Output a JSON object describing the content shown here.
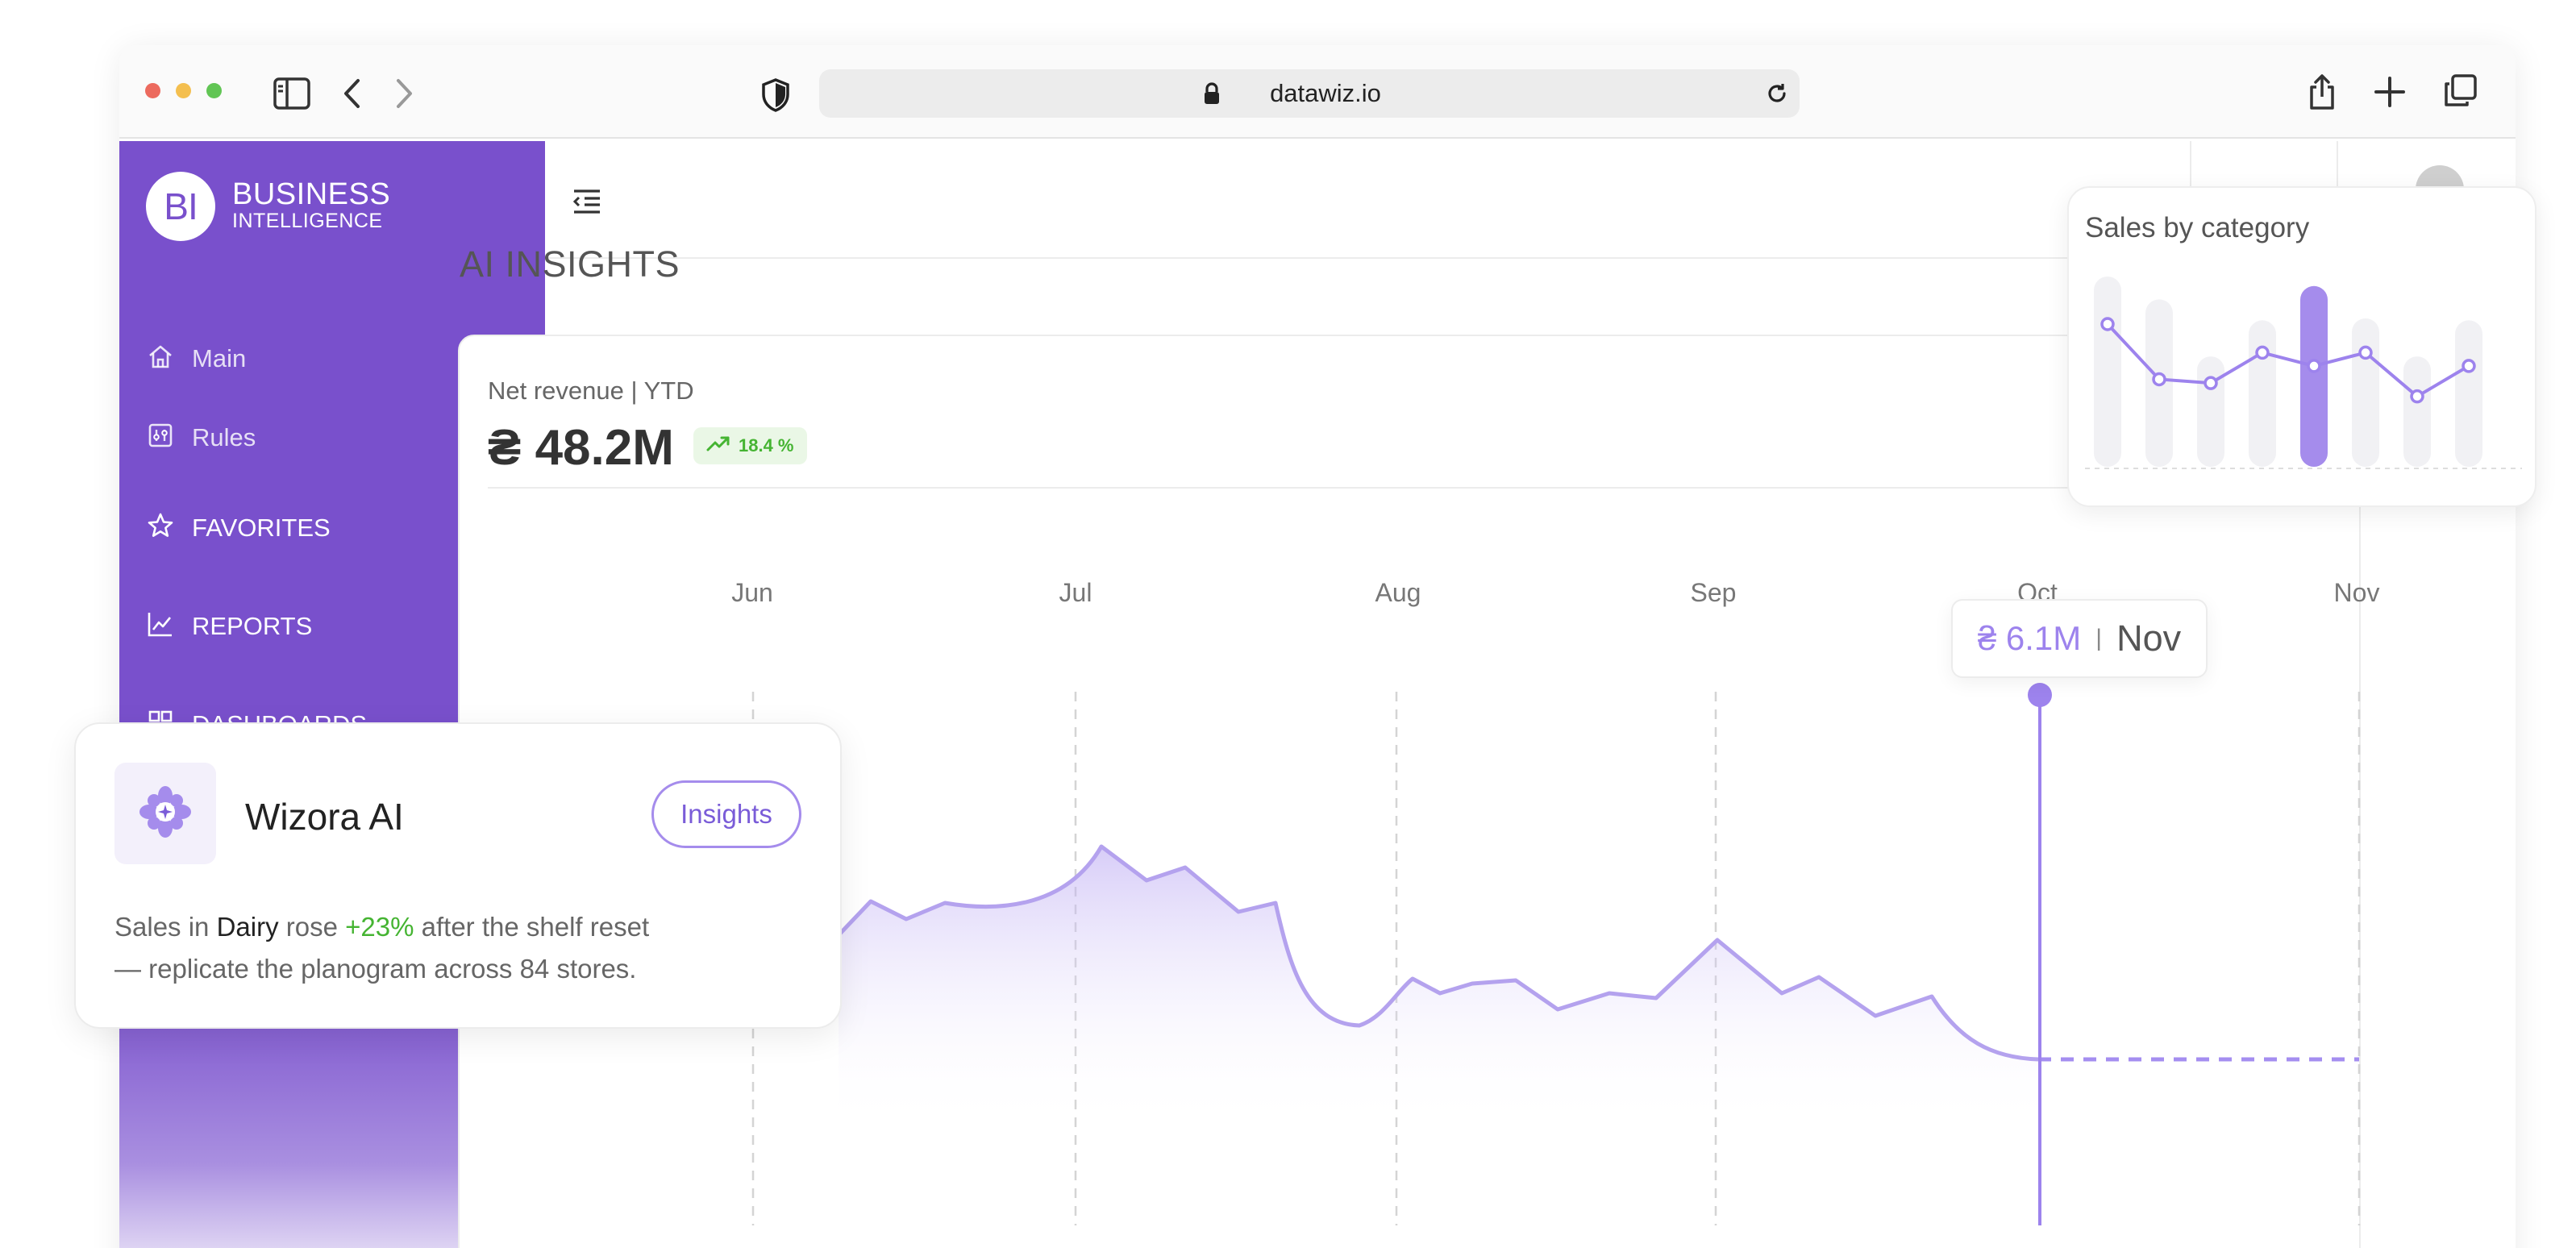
{
  "browser": {
    "url": "datawiz.io",
    "icons": [
      "sidebar-toggle-icon",
      "back-icon",
      "forward-icon",
      "shield-icon",
      "lock-icon",
      "reload-icon",
      "share-icon",
      "plus-icon",
      "tabs-icon"
    ]
  },
  "sidebar": {
    "logo_mark": "BI",
    "logo_line1": "BUSINESS",
    "logo_line2": "INTELLIGENCE",
    "items": [
      {
        "label": "Main",
        "icon": "home-icon"
      },
      {
        "label": "Rules",
        "icon": "rules-icon"
      },
      {
        "label": "FAVORITES",
        "icon": "star-icon"
      },
      {
        "label": "REPORTS",
        "icon": "line-chart-icon"
      },
      {
        "label": "DASHBOARDS",
        "icon": "grid-icon"
      }
    ]
  },
  "main": {
    "page_title": "AI INSIGHTS",
    "revenue": {
      "label": "Net revenue | YTD",
      "value": "₴ 48.2M",
      "change": "18.4 %"
    },
    "tooltip": {
      "value": "₴ 6.1M",
      "separator": "|",
      "month": "Nov"
    }
  },
  "sales_by_category": {
    "title": "Sales by category"
  },
  "wizora": {
    "name": "Wizora AI",
    "button": "Insights",
    "text_1": "Sales in ",
    "category": "Dairy",
    "text_2": " rose ",
    "change": "+23%",
    "text_3": " after the shelf reset",
    "text_4": "— replicate the planogram across 84 stores."
  },
  "colors": {
    "brand_purple": "#7950cc",
    "accent_lavender": "#9d83ed",
    "positive_green": "#45b432"
  },
  "chart_data": [
    {
      "type": "area",
      "categories": [
        "Jun",
        "Jul",
        "Aug",
        "Sep",
        "Oct",
        "Nov"
      ],
      "highlight": {
        "category": "Nov",
        "value_label": "₴ 6.1M"
      },
      "forecast_after": "Oct",
      "grid": "vertical dashed"
    },
    {
      "type": "bar",
      "title": "Sales by category",
      "bars": [
        1.0,
        0.88,
        0.58,
        0.77,
        0.95,
        0.78,
        0.58,
        0.77
      ],
      "highlighted_bar": 4,
      "line": [
        0.75,
        0.46,
        0.44,
        0.6,
        0.53,
        0.6,
        0.37,
        0.53
      ]
    }
  ]
}
